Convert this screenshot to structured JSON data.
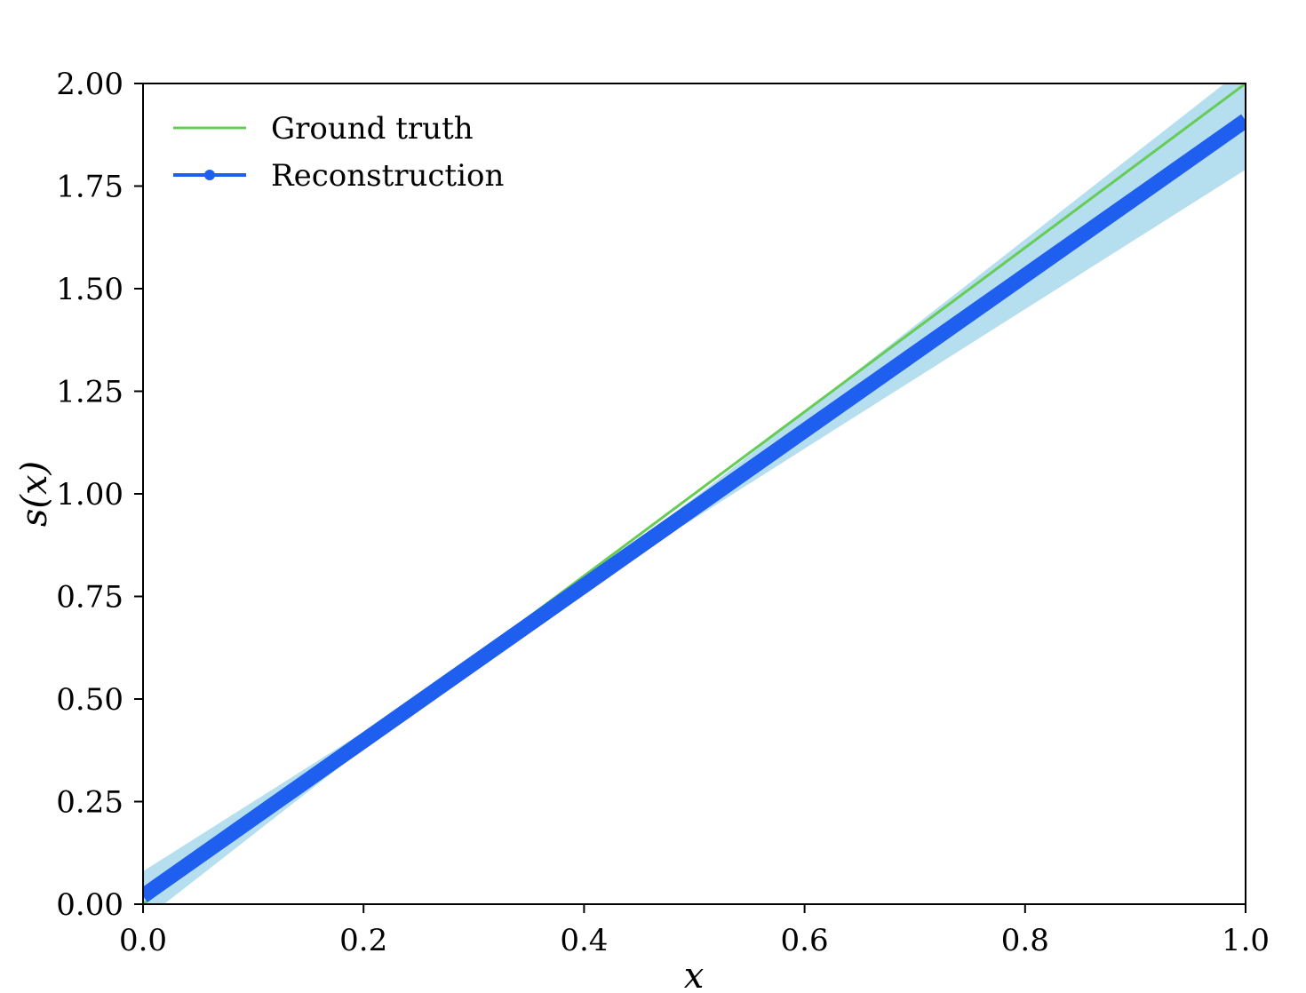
{
  "chart_data": {
    "type": "line",
    "title": "",
    "xlabel": "x",
    "ylabel": "s(x)",
    "xlim": [
      0.0,
      1.0
    ],
    "ylim": [
      0.0,
      2.0
    ],
    "x_ticks": [
      "0.0",
      "0.2",
      "0.4",
      "0.6",
      "0.8",
      "1.0"
    ],
    "x_tick_values": [
      0.0,
      0.2,
      0.4,
      0.6,
      0.8,
      1.0
    ],
    "y_ticks": [
      "0.00",
      "0.25",
      "0.50",
      "0.75",
      "1.00",
      "1.25",
      "1.50",
      "1.75",
      "2.00"
    ],
    "y_tick_values": [
      0.0,
      0.25,
      0.5,
      0.75,
      1.0,
      1.25,
      1.5,
      1.75,
      2.0
    ],
    "grid": false,
    "legend_position": "top-left",
    "series": [
      {
        "name": "Ground truth",
        "color": "#66cc55",
        "x": [
          0.0,
          1.0
        ],
        "y": [
          0.0,
          2.0
        ]
      },
      {
        "name": "Reconstruction",
        "color": "#1f5ff0",
        "x": [
          0.0,
          0.1,
          0.2,
          0.3,
          0.4,
          0.5,
          0.6,
          0.7,
          0.8,
          0.9,
          1.0
        ],
        "y": [
          0.02,
          0.209,
          0.398,
          0.587,
          0.776,
          0.965,
          1.154,
          1.343,
          1.532,
          1.721,
          1.91
        ]
      }
    ],
    "band": {
      "color": "#a8d8ec",
      "x": [
        0.0,
        0.1,
        0.2,
        0.3,
        0.4,
        0.5,
        0.6,
        0.7,
        0.8,
        0.9,
        1.0
      ],
      "upper": [
        0.08,
        0.25,
        0.42,
        0.6,
        0.79,
        0.99,
        1.2,
        1.41,
        1.62,
        1.83,
        2.04
      ],
      "lower": [
        -0.04,
        0.17,
        0.38,
        0.58,
        0.77,
        0.94,
        1.11,
        1.28,
        1.45,
        1.62,
        1.79
      ]
    }
  }
}
